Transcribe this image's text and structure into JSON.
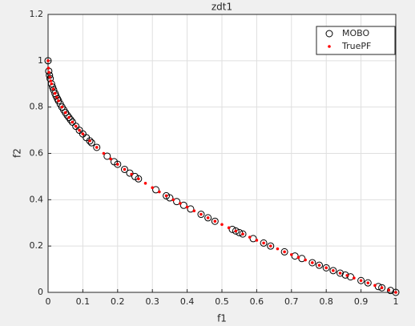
{
  "chart_data": {
    "type": "scatter",
    "title": "zdt1",
    "x_label": "f1",
    "y_label": "f2",
    "xlim": [
      0,
      1
    ],
    "ylim": [
      0,
      1.2
    ],
    "xticks": [
      0,
      0.1,
      0.2,
      0.3,
      0.4,
      0.5,
      0.6,
      0.7,
      0.8,
      0.9,
      1
    ],
    "yticks": [
      0,
      0.2,
      0.4,
      0.6,
      0.8,
      1,
      1.2
    ],
    "grid": true,
    "legend_position": "top-right",
    "series": [
      {
        "name": "MOBO",
        "color": "#000000",
        "marker": "circle",
        "x": [
          0,
          0.002,
          0.004,
          0.006,
          0.01,
          0.013,
          0.016,
          0.02,
          0.023,
          0.027,
          0.03,
          0.035,
          0.04,
          0.045,
          0.05,
          0.055,
          0.06,
          0.065,
          0.07,
          0.08,
          0.09,
          0.1,
          0.11,
          0.12,
          0.125,
          0.14,
          0.17,
          0.19,
          0.2,
          0.22,
          0.235,
          0.25,
          0.26,
          0.31,
          0.34,
          0.35,
          0.37,
          0.39,
          0.41,
          0.44,
          0.46,
          0.48,
          0.53,
          0.54,
          0.55,
          0.56,
          0.59,
          0.62,
          0.64,
          0.68,
          0.71,
          0.73,
          0.76,
          0.78,
          0.8,
          0.82,
          0.84,
          0.855,
          0.87,
          0.9,
          0.92,
          0.95,
          0.96,
          0.985,
          1
        ],
        "values": [
          1,
          0.955,
          0.937,
          0.923,
          0.9,
          0.886,
          0.874,
          0.859,
          0.848,
          0.836,
          0.827,
          0.813,
          0.8,
          0.788,
          0.776,
          0.765,
          0.755,
          0.745,
          0.735,
          0.717,
          0.7,
          0.684,
          0.668,
          0.654,
          0.646,
          0.626,
          0.588,
          0.564,
          0.553,
          0.531,
          0.515,
          0.5,
          0.49,
          0.443,
          0.417,
          0.408,
          0.392,
          0.376,
          0.36,
          0.337,
          0.322,
          0.307,
          0.272,
          0.265,
          0.258,
          0.252,
          0.232,
          0.213,
          0.2,
          0.175,
          0.157,
          0.146,
          0.128,
          0.117,
          0.106,
          0.094,
          0.083,
          0.075,
          0.067,
          0.051,
          0.041,
          0.025,
          0.02,
          0.008,
          0
        ]
      },
      {
        "name": "TruePF",
        "color": "#ff0000",
        "marker": "dot",
        "x": [
          0,
          0.001,
          0.0025,
          0.005,
          0.0075,
          0.01,
          0.015,
          0.02,
          0.025,
          0.03,
          0.04,
          0.05,
          0.06,
          0.07,
          0.08,
          0.09,
          0.1,
          0.12,
          0.14,
          0.16,
          0.18,
          0.2,
          0.22,
          0.24,
          0.26,
          0.28,
          0.3,
          0.32,
          0.34,
          0.36,
          0.38,
          0.4,
          0.42,
          0.44,
          0.46,
          0.48,
          0.5,
          0.52,
          0.54,
          0.56,
          0.58,
          0.6,
          0.62,
          0.64,
          0.66,
          0.68,
          0.7,
          0.72,
          0.74,
          0.76,
          0.78,
          0.8,
          0.82,
          0.84,
          0.86,
          0.88,
          0.9,
          0.92,
          0.94,
          0.96,
          0.98,
          1
        ],
        "values": [
          1,
          0.968,
          0.95,
          0.929,
          0.913,
          0.9,
          0.878,
          0.859,
          0.842,
          0.827,
          0.8,
          0.776,
          0.755,
          0.735,
          0.717,
          0.7,
          0.684,
          0.654,
          0.626,
          0.6,
          0.576,
          0.553,
          0.531,
          0.51,
          0.49,
          0.471,
          0.452,
          0.434,
          0.417,
          0.4,
          0.384,
          0.368,
          0.352,
          0.337,
          0.322,
          0.307,
          0.293,
          0.279,
          0.265,
          0.252,
          0.238,
          0.225,
          0.213,
          0.2,
          0.188,
          0.175,
          0.163,
          0.151,
          0.14,
          0.128,
          0.117,
          0.106,
          0.094,
          0.083,
          0.073,
          0.062,
          0.051,
          0.041,
          0.03,
          0.02,
          0.01,
          0
        ]
      }
    ]
  }
}
